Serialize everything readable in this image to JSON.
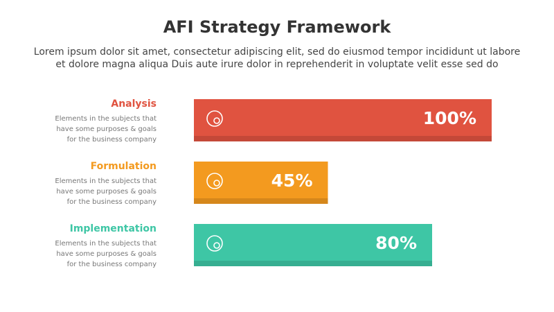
{
  "chart_data": {
    "type": "bar",
    "orientation": "horizontal",
    "title": "AFI Strategy Framework",
    "subtitle": [
      "Lorem ipsum dolor sit amet, consectetur adipiscing elit, sed do eiusmod tempor incididunt ut labore",
      "et dolore magna aliqua Duis aute irure dolor in reprehenderit in voluptate velit esse sed do"
    ],
    "categories": [
      "Analysis",
      "Formulation",
      "Implementation"
    ],
    "descriptions": [
      [
        "Elements in the subjects that",
        "have  some purposes & goals",
        "for the  business company"
      ],
      [
        "Elements in the subjects that",
        "have  some purposes & goals",
        "for the  business company"
      ],
      [
        "Elements in the subjects that",
        "have  some purposes & goals",
        "for the  business company"
      ]
    ],
    "values": [
      100,
      45,
      80
    ],
    "value_labels": [
      "100%",
      "45%",
      "80%"
    ],
    "colors": [
      "#e05340",
      "#f39a1f",
      "#3ec6a5"
    ]
  }
}
